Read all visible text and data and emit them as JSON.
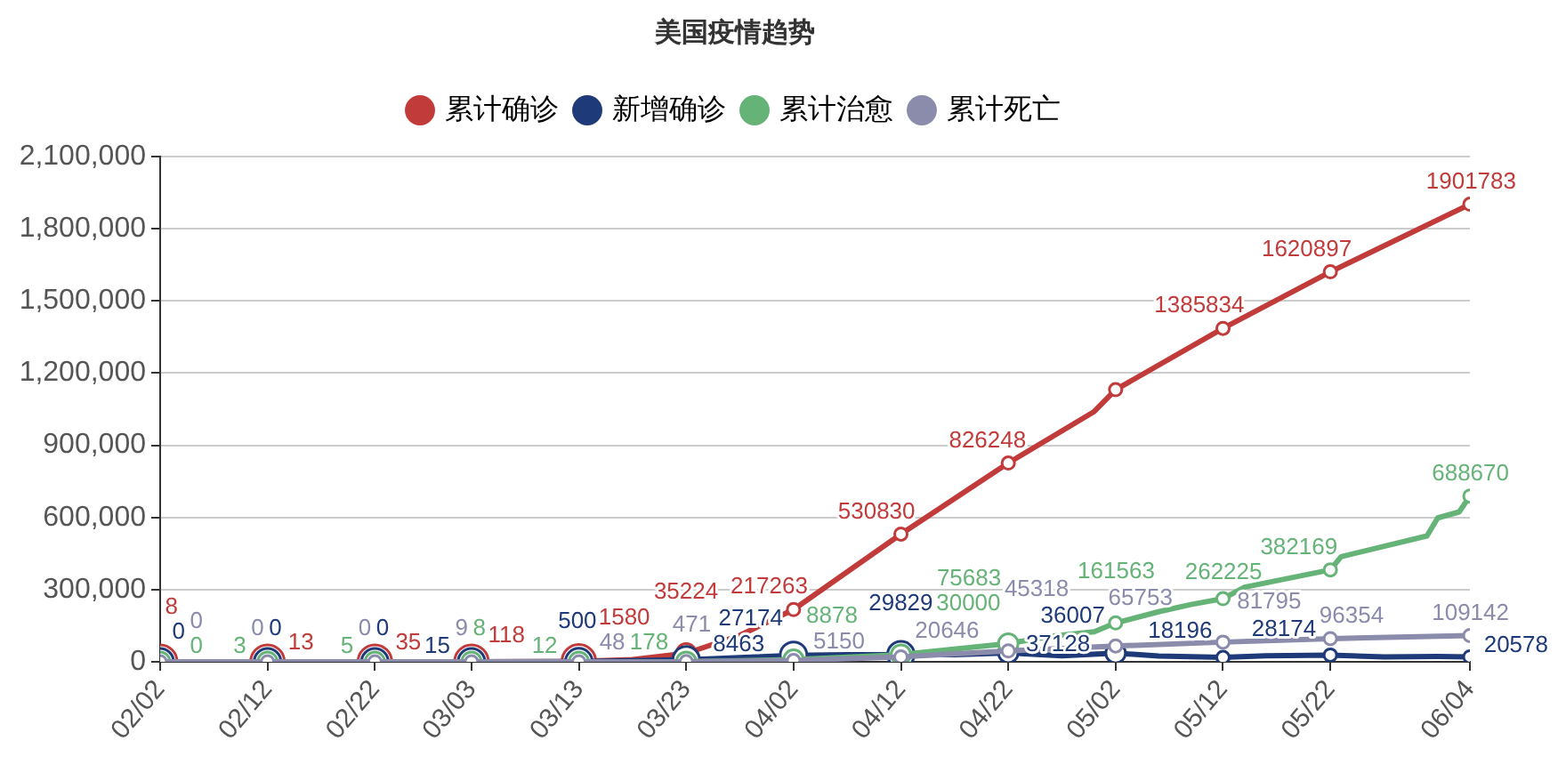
{
  "chart_data": {
    "type": "line",
    "title": "美国疫情趋势",
    "legend": "top",
    "grid": "y",
    "marker": "circle",
    "line_style": "solid",
    "xlim": [
      "--02-02",
      "--06-04"
    ],
    "xticks": [
      {
        "value": "--02-02",
        "label": "02/02"
      },
      {
        "value": "--02-12",
        "label": "02/12"
      },
      {
        "value": "--02-22",
        "label": "02/22"
      },
      {
        "value": "--03-03",
        "label": "03/03"
      },
      {
        "value": "--03-13",
        "label": "03/13"
      },
      {
        "value": "--03-23",
        "label": "03/23"
      },
      {
        "value": "--04-02",
        "label": "04/02"
      },
      {
        "value": "--04-12",
        "label": "04/12"
      },
      {
        "value": "--04-22",
        "label": "04/22"
      },
      {
        "value": "--05-02",
        "label": "05/02"
      },
      {
        "value": "--05-12",
        "label": "05/12"
      },
      {
        "value": "--05-22",
        "label": "05/22"
      },
      {
        "value": "--06-04",
        "label": "06/04"
      }
    ],
    "ylim": [
      0,
      2100000
    ],
    "yticks": [
      0,
      {
        "value": 300000,
        "label": "300,000"
      },
      {
        "value": 600000,
        "label": "600,000"
      },
      {
        "value": 900000,
        "label": "900,000"
      },
      {
        "value": 1200000,
        "label": "1,200,000"
      },
      {
        "value": 1500000,
        "label": "1,500,000"
      },
      {
        "value": 1800000,
        "label": "1,800,000"
      },
      {
        "value": 2100000,
        "label": "2,100,000"
      }
    ],
    "series": [
      {
        "name": "累计确诊",
        "color": "#c23b3b",
        "x": [
          "--02-02",
          "--02-12",
          "--02-22",
          "--03-03",
          "--03-13",
          "--03-18",
          "--03-23",
          "--03-28",
          "--04-02",
          "--04-12",
          "--04-22",
          "--04-30",
          "--05-02",
          "--05-12",
          "--05-22",
          "--06-04"
        ],
        "values": [
          8,
          13,
          35,
          118,
          1580,
          9000,
          35224,
          110000,
          217263,
          530830,
          826248,
          1040000,
          1131000,
          1385834,
          1620897,
          1901783
        ],
        "value_labels": [
          "8",
          "13",
          "35",
          "118",
          "1580",
          null,
          "35224",
          null,
          "217263",
          "530830",
          "826248",
          null,
          null,
          "1385834",
          "1620897",
          "1901783"
        ]
      },
      {
        "name": "新增确诊",
        "color": "#1e3a78",
        "x": [
          "--02-02",
          "--02-12",
          "--02-22",
          "--03-03",
          "--03-13",
          "--03-23",
          "--04-02",
          "--04-07",
          "--04-12",
          "--04-17",
          "--04-22",
          "--04-27",
          "--05-02",
          "--05-06",
          "--05-12",
          "--05-16",
          "--05-22",
          "--05-27",
          "--06-01",
          "--06-04"
        ],
        "values": [
          0,
          0,
          0,
          15,
          500,
          8463,
          27174,
          30000,
          29829,
          30000,
          37128,
          25000,
          36007,
          24000,
          18196,
          25000,
          28174,
          20000,
          22000,
          20578
        ],
        "value_labels": [
          "0",
          "0",
          "0",
          "15",
          "500",
          "8463",
          "27174",
          null,
          "29829",
          null,
          "37128",
          null,
          "36007",
          null,
          "18196",
          null,
          "28174",
          null,
          null,
          "20578"
        ]
      },
      {
        "name": "累计治愈",
        "color": "#66b378",
        "x": [
          "--02-02",
          "--02-12",
          "--02-22",
          "--03-03",
          "--03-13",
          "--03-23",
          "--04-02",
          "--04-12",
          "--04-22",
          "--04-26",
          "--04-30",
          "--05-02",
          "--05-06",
          "--05-09",
          "--05-12",
          "--05-14",
          "--05-22",
          "--05-23",
          "--05-31",
          "--06-01",
          "--06-03",
          "--06-04"
        ],
        "values": [
          0,
          3,
          5,
          8,
          12,
          178,
          8878,
          30000,
          75683,
          106000,
          125000,
          161563,
          208000,
          238000,
          262225,
          310000,
          382169,
          437000,
          523000,
          598000,
          623000,
          688670
        ],
        "value_labels": [
          "0",
          "3",
          "5",
          "8",
          "12",
          "178",
          "8878",
          "30000",
          "75683",
          null,
          null,
          "161563",
          null,
          null,
          "262225",
          null,
          "382169",
          null,
          null,
          null,
          null,
          "688670"
        ]
      },
      {
        "name": "累计死亡",
        "color": "#8b8bab",
        "x": [
          "--02-02",
          "--02-12",
          "--02-22",
          "--03-03",
          "--03-13",
          "--03-23",
          "--04-02",
          "--04-12",
          "--04-22",
          "--05-02",
          "--05-12",
          "--05-22",
          "--06-04"
        ],
        "values": [
          0,
          0,
          0,
          9,
          48,
          471,
          5150,
          20646,
          45318,
          65753,
          81795,
          96354,
          109142
        ],
        "value_labels": [
          "0",
          "0",
          "0",
          "9",
          "48",
          "471",
          "5150",
          "20646",
          "45318",
          "65753",
          "81795",
          "96354",
          "109142"
        ]
      }
    ]
  }
}
